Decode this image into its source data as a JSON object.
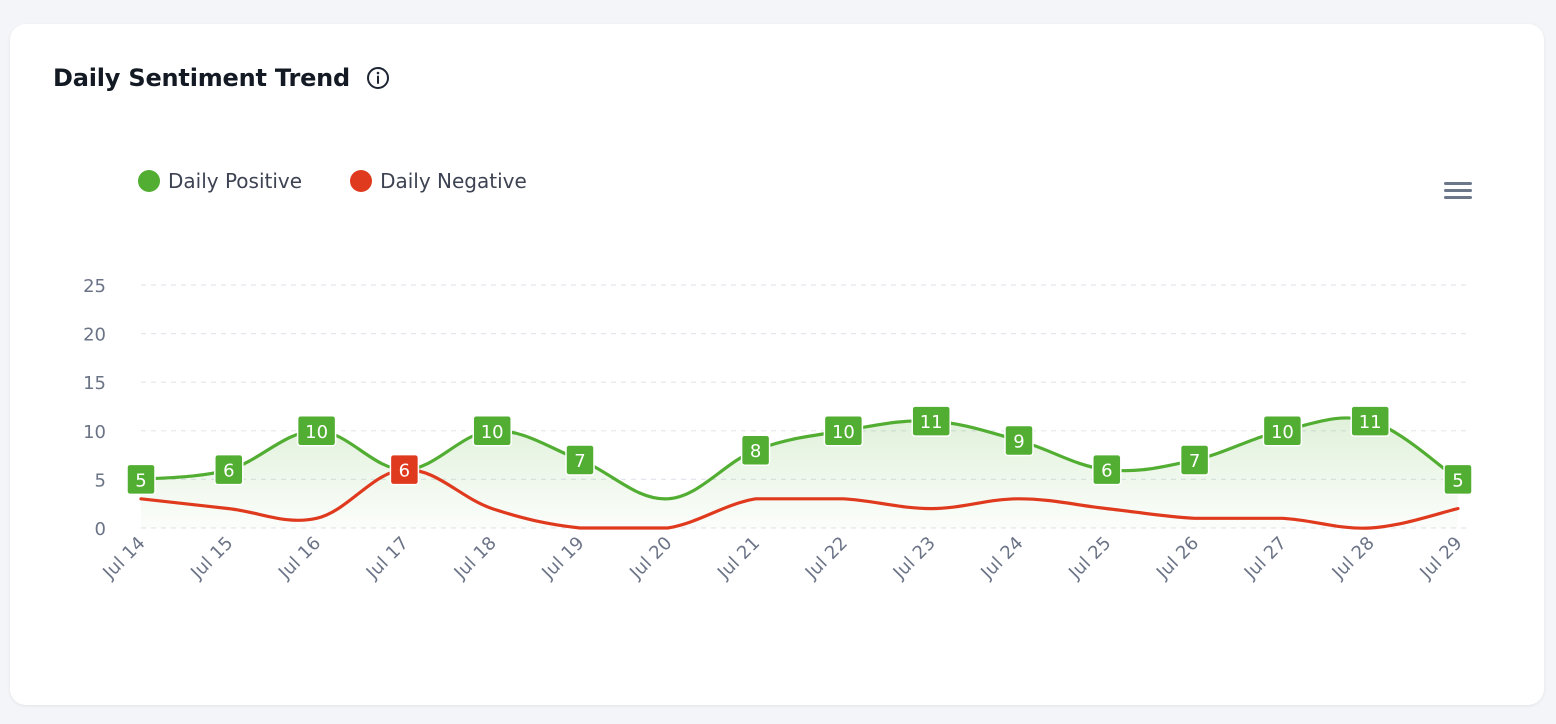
{
  "card": {
    "title": "Daily Sentiment Trend"
  },
  "icons": {
    "info": "info-circle-icon",
    "menu": "hamburger-menu-icon"
  },
  "colors": {
    "positive": "#52ae32",
    "negative": "#e03a1e",
    "grid": "#e3e6ec",
    "axis_text": "#6b7386"
  },
  "chart_data": {
    "type": "line",
    "smooth": true,
    "categories": [
      "Jul 14",
      "Jul 15",
      "Jul 16",
      "Jul 17",
      "Jul 18",
      "Jul 19",
      "Jul 20",
      "Jul 21",
      "Jul 22",
      "Jul 23",
      "Jul 24",
      "Jul 25",
      "Jul 26",
      "Jul 27",
      "Jul 28",
      "Jul 29"
    ],
    "series": [
      {
        "name": "Daily Positive",
        "color": "#52ae32",
        "values": [
          5,
          6,
          10,
          6,
          10,
          7,
          3,
          8,
          10,
          11,
          9,
          6,
          7,
          10,
          11,
          5
        ],
        "data_labels": [
          true,
          true,
          true,
          false,
          true,
          true,
          false,
          true,
          true,
          true,
          true,
          true,
          true,
          true,
          true,
          true
        ],
        "area_fill": true
      },
      {
        "name": "Daily Negative",
        "color": "#e03a1e",
        "values": [
          3,
          2,
          1,
          6,
          2,
          0,
          0,
          3,
          3,
          2,
          3,
          2,
          1,
          1,
          0,
          2
        ],
        "data_labels": [
          false,
          false,
          false,
          true,
          false,
          false,
          false,
          false,
          false,
          false,
          false,
          false,
          false,
          false,
          false,
          false
        ],
        "area_fill": false
      }
    ],
    "y_ticks": [
      0,
      5,
      10,
      15,
      20,
      25
    ],
    "ylim": [
      0,
      25
    ],
    "grid": true,
    "legend": "top-left",
    "xlabel": "",
    "ylabel": ""
  }
}
